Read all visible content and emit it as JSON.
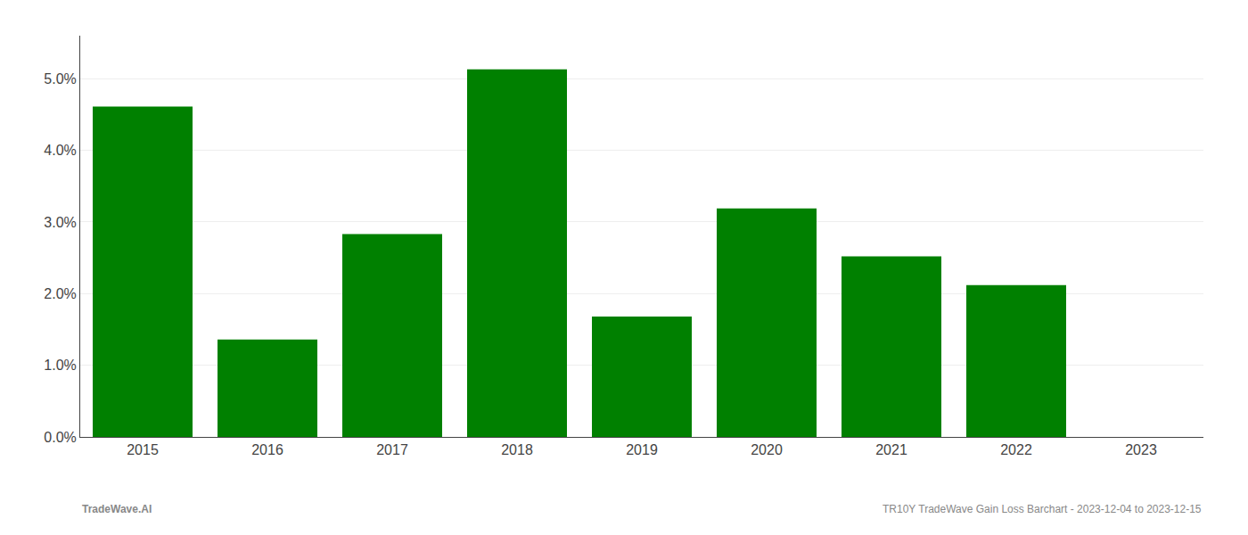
{
  "chart_data": {
    "type": "bar",
    "categories": [
      "2015",
      "2016",
      "2017",
      "2018",
      "2019",
      "2020",
      "2021",
      "2022",
      "2023"
    ],
    "values": [
      4.61,
      1.36,
      2.83,
      5.13,
      1.68,
      3.19,
      2.52,
      2.12,
      0.0
    ],
    "color": "#008000",
    "ylim": [
      0,
      5.6
    ],
    "yticks": [
      {
        "value": 0.0,
        "label": "0.0%"
      },
      {
        "value": 1.0,
        "label": "1.0%"
      },
      {
        "value": 2.0,
        "label": "2.0%"
      },
      {
        "value": 3.0,
        "label": "3.0%"
      },
      {
        "value": 4.0,
        "label": "4.0%"
      },
      {
        "value": 5.0,
        "label": "5.0%"
      }
    ],
    "grid": true,
    "annotations": [
      "TradeWave.AI",
      "TR10Y TradeWave Gain Loss Barchart - 2023-12-04 to 2023-12-15"
    ]
  }
}
